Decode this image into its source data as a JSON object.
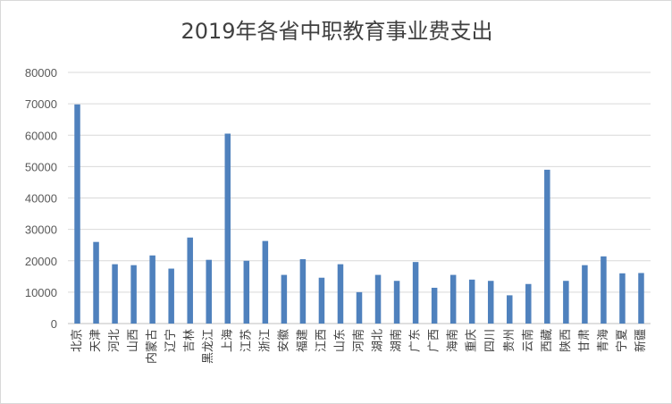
{
  "chart_data": {
    "type": "bar",
    "title": "2019年各省中职教育事业费支出",
    "xlabel": "",
    "ylabel": "",
    "ylim": [
      0,
      80000
    ],
    "yticks": [
      0,
      10000,
      20000,
      30000,
      40000,
      50000,
      60000,
      70000,
      80000
    ],
    "grid": true,
    "legend": "none",
    "bar_color": "#4f81bd",
    "categories": [
      "北京",
      "天津",
      "河北",
      "山西",
      "内蒙古",
      "辽宁",
      "吉林",
      "黑龙江",
      "上海",
      "江苏",
      "浙江",
      "安徽",
      "福建",
      "江西",
      "山东",
      "河南",
      "湖北",
      "湖南",
      "广东",
      "广西",
      "海南",
      "重庆",
      "四川",
      "贵州",
      "云南",
      "西藏",
      "陕西",
      "甘肃",
      "青海",
      "宁夏",
      "新疆"
    ],
    "values": [
      69800,
      26000,
      18900,
      18600,
      21700,
      17500,
      27400,
      20300,
      60500,
      20000,
      26300,
      15500,
      20500,
      14600,
      18900,
      10000,
      15500,
      13600,
      19600,
      11400,
      15500,
      14000,
      13600,
      9000,
      12600,
      49000,
      13600,
      18600,
      21400,
      16000,
      16100
    ]
  }
}
